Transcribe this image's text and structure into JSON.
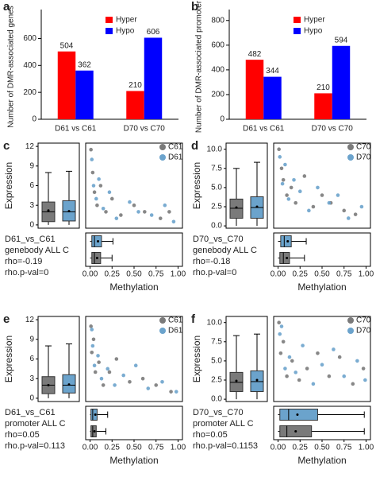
{
  "chart_data": [
    {
      "type": "bar",
      "panel": "a",
      "ylabel": "Number of DMR-associated genes",
      "categories": [
        "D61 vs C61",
        "D70 vs C70"
      ],
      "series": [
        {
          "name": "Hyper",
          "color": "#ff0000",
          "values": [
            504,
            210
          ]
        },
        {
          "name": "Hypo",
          "color": "#0000ff",
          "values": [
            362,
            606
          ]
        }
      ],
      "ylim": [
        0,
        780
      ],
      "yticks": [
        0,
        200,
        400,
        600
      ],
      "legend": "upper right"
    },
    {
      "type": "bar",
      "panel": "b",
      "ylabel": "Number of DMR-associated promoter",
      "categories": [
        "D61 vs C61",
        "D70 vs C70"
      ],
      "series": [
        {
          "name": "Hyper",
          "color": "#ff0000",
          "values": [
            482,
            210
          ]
        },
        {
          "name": "Hypo",
          "color": "#0000ff",
          "values": [
            344,
            594
          ]
        }
      ],
      "ylim": [
        0,
        850
      ],
      "yticks": [
        0,
        200,
        400,
        600,
        800
      ],
      "legend": "upper right"
    },
    {
      "type": "composite",
      "panel": "c",
      "xlabel": "Methylation",
      "ylabel": "Expression",
      "annotations": [
        "D61_vs_C61",
        "genebody ALL C",
        "rho=-0.19",
        "rho.p-val=0"
      ],
      "xlim": [
        -0.05,
        1.05
      ],
      "xticks": [
        {
          "value": 0,
          "label": "0.00"
        },
        0.25,
        {
          "value": 0.5,
          "label": "0.50"
        },
        0.75,
        {
          "value": 1,
          "label": "1.00"
        }
      ],
      "ylim": [
        -0.5,
        12.5
      ],
      "yticks": [
        0,
        3,
        6,
        9,
        12
      ],
      "series": [
        {
          "name": "C61",
          "color": "#7a7a7a",
          "x": [
            0.01,
            0.03,
            0.05,
            0.08,
            0.12,
            0.18,
            0.25,
            0.35,
            0.5,
            0.62,
            0.8,
            0.9
          ],
          "y": [
            11.5,
            8,
            5,
            3,
            6,
            2,
            4,
            1.5,
            3,
            2,
            1,
            2
          ],
          "expression_box": {
            "whisker_low": 0,
            "q1": 0.5,
            "median": 2,
            "q3": 3.5,
            "whisker_high": 8,
            "mean": 2.2
          },
          "methylation_box": {
            "whisker_low": 0,
            "q1": 0.02,
            "median": 0.05,
            "q3": 0.12,
            "whisker_high": 0.25,
            "mean": 0.08
          }
        },
        {
          "name": "D61",
          "color": "#6ba3cc",
          "x": [
            0.02,
            0.04,
            0.07,
            0.1,
            0.15,
            0.22,
            0.3,
            0.45,
            0.55,
            0.7,
            0.85,
            0.95
          ],
          "y": [
            10,
            6,
            4,
            7,
            2.5,
            5,
            1,
            3.5,
            2,
            1.5,
            3,
            0.5
          ],
          "expression_box": {
            "whisker_low": 0,
            "q1": 0.6,
            "median": 2,
            "q3": 3.7,
            "whisker_high": 8.2,
            "mean": 2.1
          },
          "methylation_box": {
            "whisker_low": 0,
            "q1": 0.02,
            "median": 0.05,
            "q3": 0.13,
            "whisker_high": 0.26,
            "mean": 0.09
          }
        }
      ]
    },
    {
      "type": "composite",
      "panel": "d",
      "xlabel": "Methylation",
      "ylabel": "Expression",
      "annotations": [
        "D70_vs_C70",
        "genebody ALL C",
        "rho=-0.18",
        "rho.p-val=0"
      ],
      "xlim": [
        -0.05,
        1.05
      ],
      "xticks": [
        {
          "value": 0,
          "label": "0.00"
        },
        0.25,
        {
          "value": 0.5,
          "label": "0.50"
        },
        0.75,
        {
          "value": 1,
          "label": "1.00"
        }
      ],
      "ylim": [
        -0.3,
        10.8
      ],
      "yticks": [
        {
          "value": 0,
          "label": "0.0"
        },
        2.5,
        {
          "value": 5,
          "label": "5.0"
        },
        7.5,
        {
          "value": 10,
          "label": "10.0"
        }
      ],
      "series": [
        {
          "name": "C70",
          "color": "#7a7a7a",
          "x": [
            0.01,
            0.04,
            0.06,
            0.1,
            0.15,
            0.2,
            0.3,
            0.4,
            0.5,
            0.6,
            0.75,
            0.88
          ],
          "y": [
            10,
            7.5,
            6,
            4,
            5,
            3,
            6.5,
            2.5,
            4,
            3,
            2,
            1.5
          ],
          "expression_box": {
            "whisker_low": 0,
            "q1": 1,
            "median": 2.3,
            "q3": 3.5,
            "whisker_high": 7.5,
            "mean": 2.4
          },
          "methylation_box": {
            "whisker_low": 0,
            "q1": 0.02,
            "median": 0.06,
            "q3": 0.13,
            "whisker_high": 0.3,
            "mean": 0.1
          }
        },
        {
          "name": "D70",
          "color": "#6ba3cc",
          "x": [
            0.02,
            0.05,
            0.08,
            0.12,
            0.18,
            0.25,
            0.35,
            0.45,
            0.58,
            0.68,
            0.8,
            0.95
          ],
          "y": [
            9,
            5.5,
            8,
            3.5,
            6,
            4.5,
            2,
            5,
            3,
            4,
            1,
            2.5
          ],
          "expression_box": {
            "whisker_low": 0,
            "q1": 1,
            "median": 2.4,
            "q3": 3.8,
            "whisker_high": 8.3,
            "mean": 2.5
          },
          "methylation_box": {
            "whisker_low": 0,
            "q1": 0.03,
            "median": 0.07,
            "q3": 0.15,
            "whisker_high": 0.32,
            "mean": 0.11
          }
        }
      ]
    },
    {
      "type": "composite",
      "panel": "e",
      "xlabel": "Methylation",
      "ylabel": "Expression",
      "annotations": [
        "D61_vs_C61",
        "promoter ALL C",
        "rho=0.05",
        "rho.p-val=0.113"
      ],
      "xlim": [
        -0.05,
        1.05
      ],
      "xticks": [
        {
          "value": 0,
          "label": "0.00"
        },
        0.25,
        {
          "value": 0.5,
          "label": "0.50"
        },
        0.75,
        {
          "value": 1,
          "label": "1.00"
        }
      ],
      "ylim": [
        -0.5,
        12.5
      ],
      "yticks": [
        0,
        3,
        6,
        9,
        12
      ],
      "series": [
        {
          "name": "C61",
          "color": "#7a7a7a",
          "x": [
            0.01,
            0.02,
            0.04,
            0.06,
            0.1,
            0.15,
            0.22,
            0.3,
            0.45,
            0.6,
            0.75,
            0.92
          ],
          "y": [
            11,
            7,
            9,
            4,
            5.5,
            2,
            4,
            6,
            2.5,
            3,
            2,
            1
          ],
          "expression_box": {
            "whisker_low": 0,
            "q1": 0.7,
            "median": 2,
            "q3": 3.3,
            "whisker_high": 8,
            "mean": 2
          },
          "methylation_box": {
            "whisker_low": 0,
            "q1": 0.01,
            "median": 0.03,
            "q3": 0.07,
            "whisker_high": 0.18,
            "mean": 0.05
          }
        },
        {
          "name": "D61",
          "color": "#6ba3cc",
          "x": [
            0.02,
            0.03,
            0.05,
            0.09,
            0.13,
            0.2,
            0.28,
            0.38,
            0.52,
            0.66,
            0.82,
            0.98
          ],
          "y": [
            10.5,
            8,
            5,
            6.5,
            3,
            4.5,
            2,
            3.5,
            5,
            1.5,
            2.5,
            1
          ],
          "expression_box": {
            "whisker_low": 0,
            "q1": 0.8,
            "median": 2,
            "q3": 3.6,
            "whisker_high": 8.3,
            "mean": 2.1
          },
          "methylation_box": {
            "whisker_low": 0,
            "q1": 0.01,
            "median": 0.03,
            "q3": 0.08,
            "whisker_high": 0.2,
            "mean": 0.06
          }
        }
      ]
    },
    {
      "type": "composite",
      "panel": "f",
      "xlabel": "Methylation",
      "ylabel": "Expression",
      "annotations": [
        "D70_vs_C70",
        "promoter ALL C",
        "rho=0.05",
        "rho.p-val=0.1153"
      ],
      "xlim": [
        -0.05,
        1.05
      ],
      "xticks": [
        {
          "value": 0,
          "label": "0.00"
        },
        0.25,
        {
          "value": 0.5,
          "label": "0.50"
        },
        0.75,
        {
          "value": 1,
          "label": "1.00"
        }
      ],
      "ylim": [
        -0.3,
        10.8
      ],
      "yticks": [
        {
          "value": 0,
          "label": "0.0"
        },
        2.5,
        {
          "value": 5,
          "label": "5.0"
        },
        7.5,
        {
          "value": 10,
          "label": "10.0"
        }
      ],
      "series": [
        {
          "name": "C70",
          "color": "#7a7a7a",
          "x": [
            0.01,
            0.03,
            0.06,
            0.1,
            0.16,
            0.24,
            0.33,
            0.45,
            0.58,
            0.7,
            0.85,
            0.97
          ],
          "y": [
            10,
            6,
            7.5,
            3,
            5,
            2.5,
            4,
            6,
            3,
            5.5,
            2,
            4
          ],
          "expression_box": {
            "whisker_low": 0,
            "q1": 1,
            "median": 2.2,
            "q3": 3.5,
            "whisker_high": 8.3,
            "mean": 2.4
          },
          "methylation_box": {
            "whisker_low": 0,
            "q1": 0.02,
            "median": 0.1,
            "q3": 0.38,
            "whisker_high": 0.98,
            "mean": 0.2
          }
        },
        {
          "name": "D70",
          "color": "#6ba3cc",
          "x": [
            0.02,
            0.04,
            0.08,
            0.13,
            0.2,
            0.28,
            0.4,
            0.5,
            0.63,
            0.75,
            0.9,
            0.99
          ],
          "y": [
            8.5,
            9.5,
            4,
            5.5,
            3.5,
            7,
            2,
            4.5,
            6.5,
            3,
            5,
            2.5
          ],
          "expression_box": {
            "whisker_low": 0,
            "q1": 1,
            "median": 2.3,
            "q3": 3.7,
            "whisker_high": 8.5,
            "mean": 2.5
          },
          "methylation_box": {
            "whisker_low": 0,
            "q1": 0.02,
            "median": 0.12,
            "q3": 0.45,
            "whisker_high": 0.98,
            "mean": 0.22
          }
        }
      ]
    }
  ]
}
